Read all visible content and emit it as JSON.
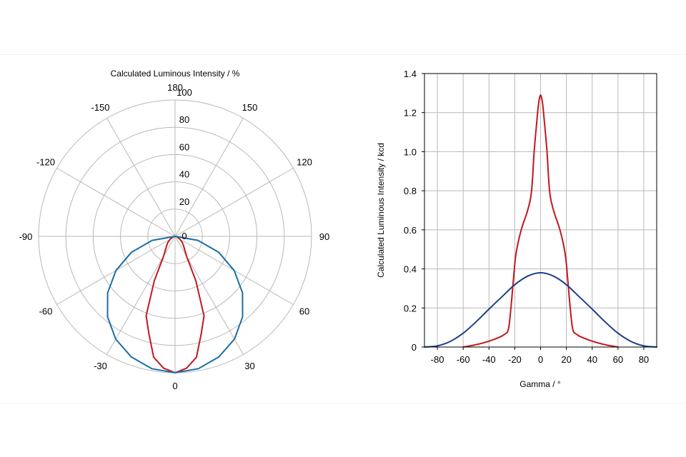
{
  "chart_data": [
    {
      "type": "polar",
      "title": "Calculated Luminous Intensity / %",
      "radial_range": [
        0,
        100
      ],
      "radial_ticks": [
        "0",
        "20",
        "40",
        "60",
        "80",
        "100"
      ],
      "angle_ticks": [
        "180",
        "150",
        "120",
        "90",
        "60",
        "30",
        "0",
        "-30",
        "-60",
        "-90",
        "-120",
        "-150"
      ],
      "grid": true,
      "series": [
        {
          "color": "#c0191d",
          "points": [
            [
              0,
              100
            ],
            [
              5,
              97
            ],
            [
              10,
              90
            ],
            [
              15,
              74
            ],
            [
              20,
              62
            ],
            [
              25,
              36
            ],
            [
              30,
              17
            ],
            [
              40,
              10
            ],
            [
              50,
              7
            ],
            [
              60,
              4
            ],
            [
              70,
              2
            ],
            [
              80,
              1
            ],
            [
              90,
              0
            ]
          ]
        },
        {
          "color": "#1c6ea4",
          "points": [
            [
              0,
              100
            ],
            [
              10,
              98.5
            ],
            [
              20,
              94
            ],
            [
              30,
              87
            ],
            [
              40,
              77
            ],
            [
              50,
              64.5
            ],
            [
              60,
              50
            ],
            [
              70,
              34
            ],
            [
              80,
              17
            ],
            [
              90,
              0
            ]
          ]
        }
      ]
    },
    {
      "type": "line",
      "xlabel": "Gamma / °",
      "ylabel": "Calculated Luminous Intensity / kcd",
      "xlim": [
        -90,
        90
      ],
      "ylim": [
        0,
        1.4
      ],
      "xticks": [
        "-80",
        "-60",
        "-40",
        "-20",
        "0",
        "20",
        "40",
        "60",
        "80"
      ],
      "yticks": [
        "0",
        "0.2",
        "0.4",
        "0.6",
        "0.8",
        "1.0",
        "1.2",
        "1.4"
      ],
      "grid": true,
      "series": [
        {
          "color": "#c0191d",
          "x": [
            -60,
            -50,
            -40,
            -32,
            -28,
            -25,
            -23,
            -21,
            -19,
            -15,
            -10,
            -7,
            -5,
            -3,
            -2,
            -1,
            0,
            1,
            2,
            3,
            5,
            7,
            10,
            15,
            19,
            21,
            23,
            25,
            28,
            32,
            40,
            50,
            60
          ],
          "y": [
            0,
            0.012,
            0.03,
            0.05,
            0.065,
            0.09,
            0.2,
            0.35,
            0.48,
            0.6,
            0.7,
            0.8,
            1.0,
            1.15,
            1.22,
            1.27,
            1.29,
            1.27,
            1.22,
            1.15,
            1.0,
            0.8,
            0.7,
            0.6,
            0.48,
            0.35,
            0.2,
            0.09,
            0.065,
            0.05,
            0.03,
            0.012,
            0
          ]
        },
        {
          "color": "#1c3f8a",
          "x": [
            -90,
            -80,
            -70,
            -60,
            -50,
            -40,
            -30,
            -20,
            -10,
            0,
            10,
            20,
            30,
            40,
            50,
            60,
            70,
            80,
            90
          ],
          "y": [
            0,
            0.006,
            0.029,
            0.071,
            0.129,
            0.194,
            0.257,
            0.319,
            0.363,
            0.38,
            0.363,
            0.319,
            0.257,
            0.194,
            0.129,
            0.071,
            0.029,
            0.006,
            0
          ]
        }
      ]
    }
  ]
}
